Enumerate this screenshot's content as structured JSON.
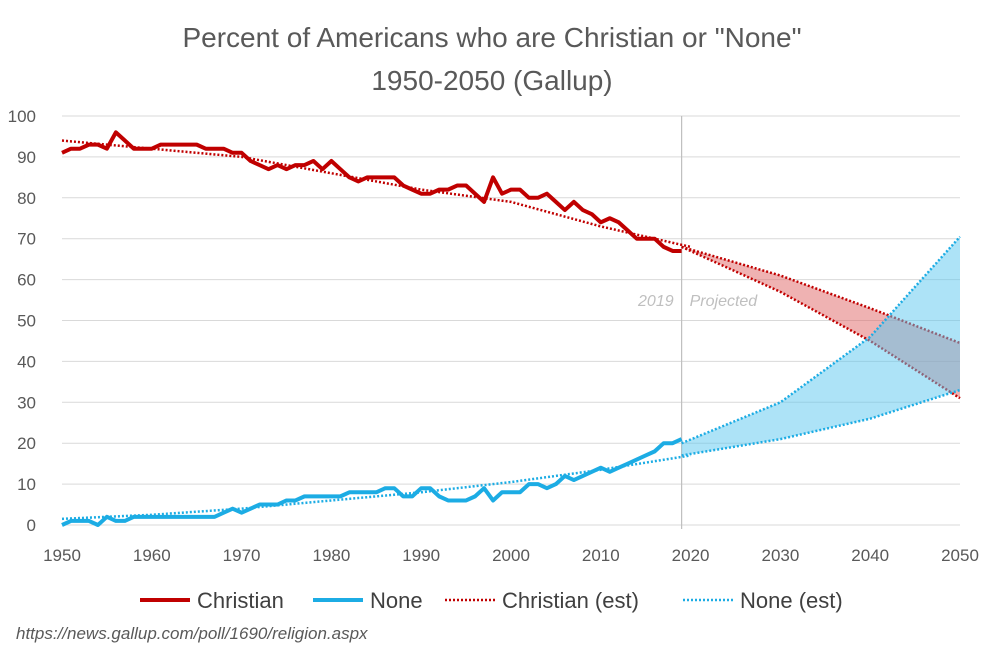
{
  "chart_data": {
    "type": "line",
    "title": "Percent of Americans who are Christian or \"None\"",
    "subtitle": "1950-2050 (Gallup)",
    "xlabel": "",
    "ylabel": "",
    "xlim": [
      1950,
      2050
    ],
    "ylim": [
      0,
      100
    ],
    "x_ticks": [
      1950,
      1960,
      1970,
      1980,
      1990,
      2000,
      2010,
      2020,
      2030,
      2040,
      2050
    ],
    "y_ticks": [
      0,
      10,
      20,
      30,
      40,
      50,
      60,
      70,
      80,
      90,
      100
    ],
    "grid": true,
    "legend_position": "bottom",
    "divider_year": 2019,
    "annotations": [
      {
        "text": "2019",
        "x": 2019,
        "y": 55,
        "side": "left"
      },
      {
        "text": "Projected",
        "x": 2019,
        "y": 55,
        "side": "right"
      }
    ],
    "series": [
      {
        "name": "Christian",
        "color": "#c00000",
        "style": "solid",
        "x": [
          1950,
          1951,
          1952,
          1953,
          1954,
          1955,
          1956,
          1957,
          1958,
          1959,
          1960,
          1961,
          1962,
          1963,
          1964,
          1965,
          1966,
          1967,
          1968,
          1969,
          1970,
          1971,
          1972,
          1973,
          1974,
          1975,
          1976,
          1977,
          1978,
          1979,
          1980,
          1981,
          1982,
          1983,
          1984,
          1985,
          1986,
          1987,
          1988,
          1989,
          1990,
          1991,
          1992,
          1993,
          1994,
          1995,
          1996,
          1997,
          1998,
          1999,
          2000,
          2001,
          2002,
          2003,
          2004,
          2005,
          2006,
          2007,
          2008,
          2009,
          2010,
          2011,
          2012,
          2013,
          2014,
          2015,
          2016,
          2017,
          2018,
          2019
        ],
        "y": [
          91,
          92,
          92,
          93,
          93,
          92,
          96,
          94,
          92,
          92,
          92,
          93,
          93,
          93,
          93,
          93,
          92,
          92,
          92,
          91,
          91,
          89,
          88,
          87,
          88,
          87,
          88,
          88,
          89,
          87,
          89,
          87,
          85,
          84,
          85,
          85,
          85,
          85,
          83,
          82,
          81,
          81,
          82,
          82,
          83,
          83,
          81,
          79,
          85,
          81,
          82,
          82,
          80,
          80,
          81,
          79,
          77,
          79,
          77,
          76,
          74,
          75,
          74,
          72,
          70,
          70,
          70,
          68,
          67,
          67
        ]
      },
      {
        "name": "None",
        "color": "#1cace4",
        "style": "solid",
        "x": [
          1950,
          1951,
          1952,
          1953,
          1954,
          1955,
          1956,
          1957,
          1958,
          1959,
          1960,
          1961,
          1962,
          1963,
          1964,
          1965,
          1966,
          1967,
          1968,
          1969,
          1970,
          1971,
          1972,
          1973,
          1974,
          1975,
          1976,
          1977,
          1978,
          1979,
          1980,
          1981,
          1982,
          1983,
          1984,
          1985,
          1986,
          1987,
          1988,
          1989,
          1990,
          1991,
          1992,
          1993,
          1994,
          1995,
          1996,
          1997,
          1998,
          1999,
          2000,
          2001,
          2002,
          2003,
          2004,
          2005,
          2006,
          2007,
          2008,
          2009,
          2010,
          2011,
          2012,
          2013,
          2014,
          2015,
          2016,
          2017,
          2018,
          2019
        ],
        "y": [
          0,
          1,
          1,
          1,
          0,
          2,
          1,
          1,
          2,
          2,
          2,
          2,
          2,
          2,
          2,
          2,
          2,
          2,
          3,
          4,
          3,
          4,
          5,
          5,
          5,
          6,
          6,
          7,
          7,
          7,
          7,
          7,
          8,
          8,
          8,
          8,
          9,
          9,
          7,
          7,
          9,
          9,
          7,
          6,
          6,
          6,
          7,
          9,
          6,
          8,
          8,
          8,
          10,
          10,
          9,
          10,
          12,
          11,
          12,
          13,
          14,
          13,
          14,
          15,
          16,
          17,
          18,
          20,
          20,
          21
        ]
      },
      {
        "name": "Christian (est)",
        "color": "#c00000",
        "style": "dotted",
        "x": [
          1950,
          1960,
          1970,
          1980,
          1990,
          2000,
          2010,
          2020
        ],
        "y": [
          94,
          92,
          90,
          86,
          82,
          79,
          73,
          68
        ]
      },
      {
        "name": "None (est)",
        "color": "#1cace4",
        "style": "dotted",
        "x": [
          1950,
          1960,
          1970,
          1980,
          1990,
          2000,
          2010,
          2020
        ],
        "y": [
          1.5,
          2.5,
          4,
          6,
          8,
          10.5,
          13.5,
          17
        ]
      }
    ],
    "projections": [
      {
        "name": "Christian",
        "color": "#c00000",
        "fill": "#e06666",
        "x": [
          2019,
          2030,
          2040,
          2050
        ],
        "upper": [
          68,
          61,
          53,
          44.5
        ],
        "lower": [
          68,
          57,
          45,
          31
        ]
      },
      {
        "name": "None",
        "color": "#1cace4",
        "fill": "#5cc8f0",
        "x": [
          2019,
          2030,
          2040,
          2050
        ],
        "upper": [
          20,
          30,
          46,
          70.5
        ],
        "lower": [
          17,
          21,
          26,
          33
        ]
      }
    ]
  },
  "source": "https://news.gallup.com/poll/1690/religion.aspx"
}
